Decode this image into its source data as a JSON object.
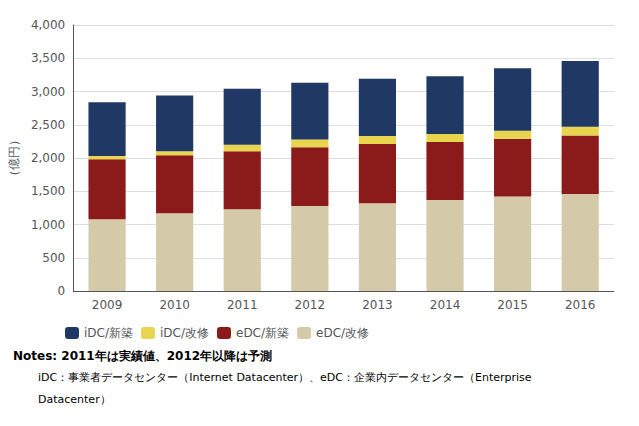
{
  "chart_data": {
    "type": "bar",
    "stacked": true,
    "categories": [
      "2009",
      "2010",
      "2011",
      "2012",
      "2013",
      "2014",
      "2015",
      "2016"
    ],
    "series": [
      {
        "name": "eDC/改修",
        "color": "#d4c9a8",
        "values": [
          1080,
          1170,
          1230,
          1280,
          1320,
          1370,
          1420,
          1460
        ]
      },
      {
        "name": "eDC/新築",
        "color": "#8b1a1a",
        "values": [
          900,
          870,
          870,
          880,
          890,
          870,
          870,
          880
        ]
      },
      {
        "name": "iDC/改修",
        "color": "#e8d44d",
        "values": [
          50,
          60,
          100,
          120,
          120,
          120,
          120,
          130
        ]
      },
      {
        "name": "iDC/新築",
        "color": "#1f3864",
        "values": [
          810,
          840,
          840,
          850,
          860,
          870,
          940,
          990
        ]
      }
    ],
    "ylabel": "（億円）",
    "ylim": [
      0,
      4000
    ],
    "yticks": [
      0,
      500,
      {
        "value": 1000,
        "label": "1,000"
      },
      {
        "value": 1500,
        "label": "1,500"
      },
      {
        "value": 2000,
        "label": "2,000"
      },
      {
        "value": 2500,
        "label": "2,500"
      },
      {
        "value": 3000,
        "label": "3,000"
      },
      {
        "value": 3500,
        "label": "3,500"
      },
      {
        "value": 4000,
        "label": "4,000"
      }
    ],
    "grid": true,
    "legend": "bottom",
    "annotations": [
      "Notes: 2011年は実績値、2012年以降は予測",
      "iDC：事業者データセンター（Internet Datacenter）、eDC：企業内データセンター（Enterprise",
      "Datacenter）"
    ]
  }
}
